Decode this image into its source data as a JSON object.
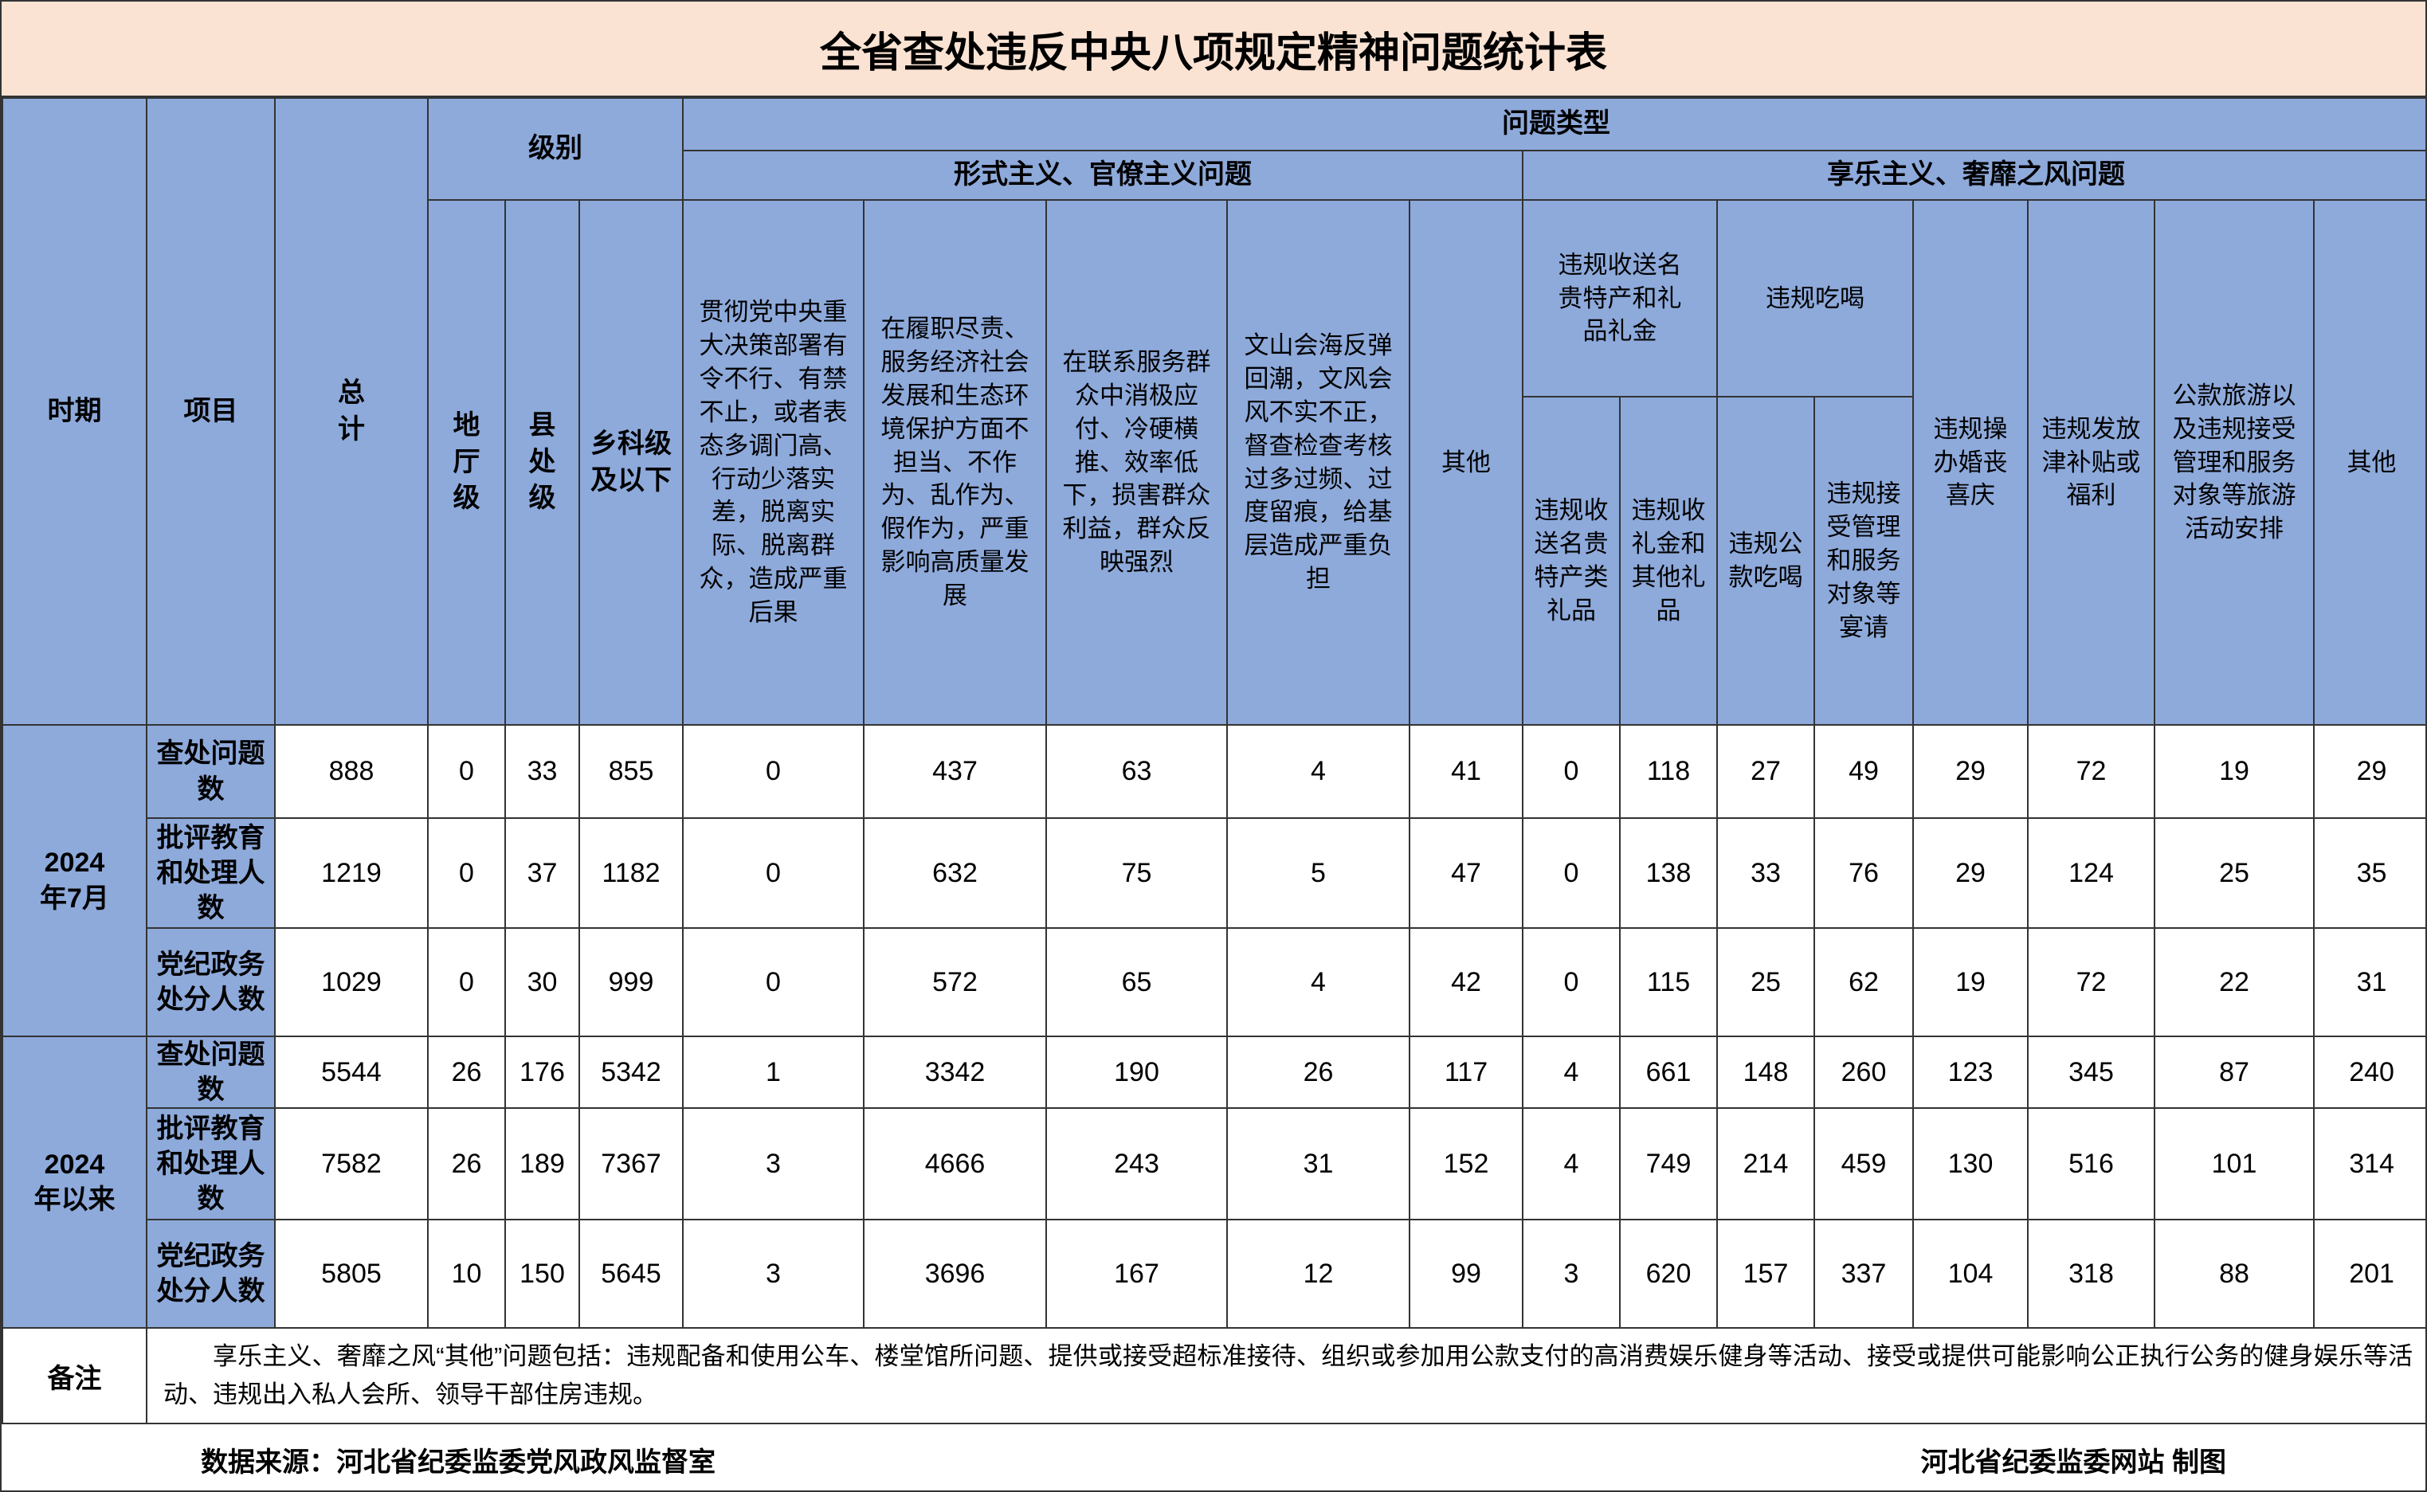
{
  "title": "全省查处违反中央八项规定精神问题统计表",
  "header": {
    "period": "时期",
    "item": "项目",
    "total": "总计",
    "level": {
      "label": "级别",
      "columns": [
        "地厅级",
        "县处级",
        "乡科级及以下"
      ]
    },
    "problem_type": "问题类型",
    "formalism": {
      "label": "形式主义、官僚主义问题",
      "columns": [
        "贯彻党中央重大决策部署有令不行、有禁不止，或者表态多调门高、行动少落实差，脱离实际、脱离群众，造成严重后果",
        "在履职尽责、服务经济社会发展和生态环境保护方面不担当、不作为、乱作为、假作为，严重影响高质量发展",
        "在联系服务群众中消极应付、冷硬横推、效率低下，损害群众利益，群众反映强烈",
        "文山会海反弹回潮，文风会风不实不正，督查检查考核过多过频、过度留痕，给基层造成严重负担",
        "其他"
      ]
    },
    "hedonism": {
      "label": "享乐主义、奢靡之风问题",
      "gifts": {
        "label": "违规收送名贵特产和礼品礼金",
        "columns": [
          "违规收送名贵特产类礼品",
          "违规收礼金和其他礼品"
        ]
      },
      "dining": {
        "label": "违规吃喝",
        "columns": [
          "违规公款吃喝",
          "违规接受管理和服务对象等宴请"
        ]
      },
      "columns": [
        "违规操办婚丧喜庆",
        "违规发放津补贴或福利",
        "公款旅游以及违规接受管理和服务对象等旅游活动安排",
        "其他"
      ]
    }
  },
  "groups": [
    {
      "period": "2024年7月",
      "items": [
        {
          "item": "查处问题数",
          "values": [
            888,
            0,
            33,
            855,
            0,
            437,
            63,
            4,
            41,
            0,
            118,
            27,
            49,
            29,
            72,
            19,
            29
          ]
        },
        {
          "item": "批评教育和处理人数",
          "values": [
            1219,
            0,
            37,
            1182,
            0,
            632,
            75,
            5,
            47,
            0,
            138,
            33,
            76,
            29,
            124,
            25,
            35
          ]
        },
        {
          "item": "党纪政务处分人数",
          "values": [
            1029,
            0,
            30,
            999,
            0,
            572,
            65,
            4,
            42,
            0,
            115,
            25,
            62,
            19,
            72,
            22,
            31
          ]
        }
      ]
    },
    {
      "period": "2024年以来",
      "items": [
        {
          "item": "查处问题数",
          "values": [
            5544,
            26,
            176,
            5342,
            1,
            3342,
            190,
            26,
            117,
            4,
            661,
            148,
            260,
            123,
            345,
            87,
            240
          ]
        },
        {
          "item": "批评教育和处理人数",
          "values": [
            7582,
            26,
            189,
            7367,
            3,
            4666,
            243,
            31,
            152,
            4,
            749,
            214,
            459,
            130,
            516,
            101,
            314
          ]
        },
        {
          "item": "党纪政务处分人数",
          "values": [
            5805,
            10,
            150,
            5645,
            3,
            3696,
            167,
            12,
            99,
            3,
            620,
            157,
            337,
            104,
            318,
            88,
            201
          ]
        }
      ]
    }
  ],
  "note": {
    "label": "备注",
    "text": "享乐主义、奢靡之风“其他”问题包括：违规配备和使用公车、楼堂馆所问题、提供或接受超标准接待、组织或参加用公款支付的高消费娱乐健身等活动、接受或提供可能影响公正执行公务的健身娱乐等活动、违规出入私人会所、领导干部住房违规。"
  },
  "footer": {
    "source": "数据来源：河北省纪委监委党风政风监督室",
    "credit": "河北省纪委监委网站 制图"
  }
}
